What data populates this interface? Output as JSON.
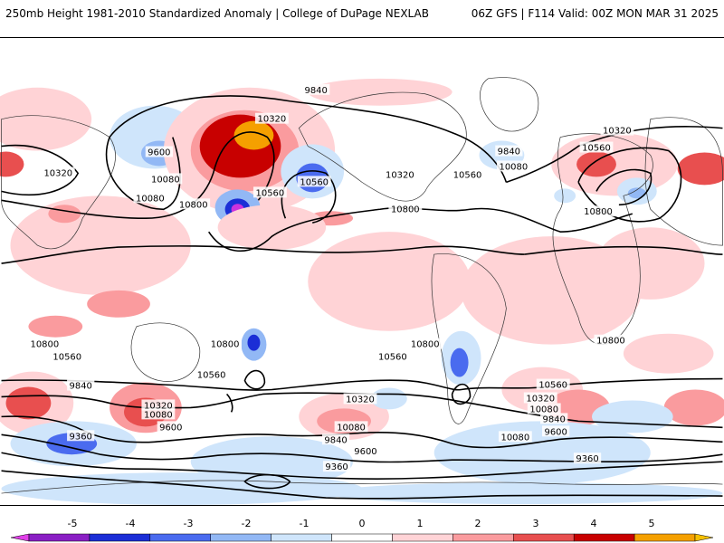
{
  "header": {
    "left": "250mb Height 1981-2010 Standardized Anomaly | College of DuPage NEXLAB",
    "right": "06Z GFS | F114 Valid: 00Z MON MAR 31 2025"
  },
  "colors": {
    "pos1": "#ffd3d6",
    "pos2": "#fa9b9e",
    "pos3": "#e84f4f",
    "pos4": "#c80000",
    "pos5": "#f5a000",
    "neg1": "#cfe5fb",
    "neg2": "#92b8f5",
    "neg3": "#4a6bef",
    "neg4": "#1b2ed6",
    "neg5": "#cc33dd",
    "contour": "#000000",
    "coast": "#333333"
  },
  "colorbar": {
    "ticks": [
      "-5",
      "-4",
      "-3",
      "-2",
      "-1",
      "0",
      "1",
      "2",
      "3",
      "4",
      "5"
    ],
    "bands": [
      "#e040e8",
      "#8a1fc4",
      "#1b2ed6",
      "#4a6bef",
      "#92b8f5",
      "#cfe5fb",
      "#ffffff",
      "#ffd3d6",
      "#fa9b9e",
      "#e84f4f",
      "#c80000",
      "#f5a000",
      "#f5c000"
    ]
  },
  "contour_labels": [
    "9840",
    "10320",
    "9600",
    "10320",
    "10080",
    "10560",
    "10800",
    "10080",
    "10560",
    "10800",
    "9840",
    "10080",
    "10320",
    "10560",
    "10320",
    "10560",
    "10800",
    "10800",
    "10800",
    "10800",
    "10800",
    "10560",
    "10560",
    "10560",
    "10560",
    "9840",
    "10320",
    "10080",
    "9600",
    "10320",
    "10080",
    "9840",
    "9600",
    "9360",
    "9360",
    "10320",
    "10080",
    "9840",
    "9600",
    "10080",
    "9360"
  ]
}
